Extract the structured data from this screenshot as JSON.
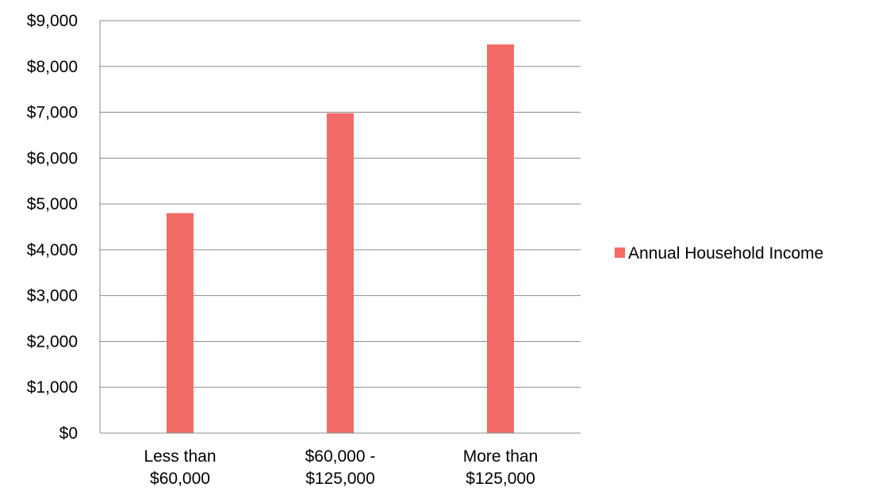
{
  "chart_data": {
    "type": "bar",
    "categories": [
      [
        "Less than",
        "$60,000"
      ],
      [
        "$60,000 -",
        "$125,000"
      ],
      [
        "More than",
        "$125,000"
      ]
    ],
    "series": [
      {
        "name": "Annual Household Income",
        "values": [
          4800,
          6980,
          8480
        ],
        "color": "#f26b66"
      }
    ],
    "yticks": [
      "$0",
      "$1,000",
      "$2,000",
      "$3,000",
      "$4,000",
      "$5,000",
      "$6,000",
      "$7,000",
      "$8,000",
      "$9,000"
    ],
    "ylim": [
      0,
      9000
    ],
    "grid": true,
    "legend_position": "right",
    "gridline_color": "#8c8c8c"
  }
}
